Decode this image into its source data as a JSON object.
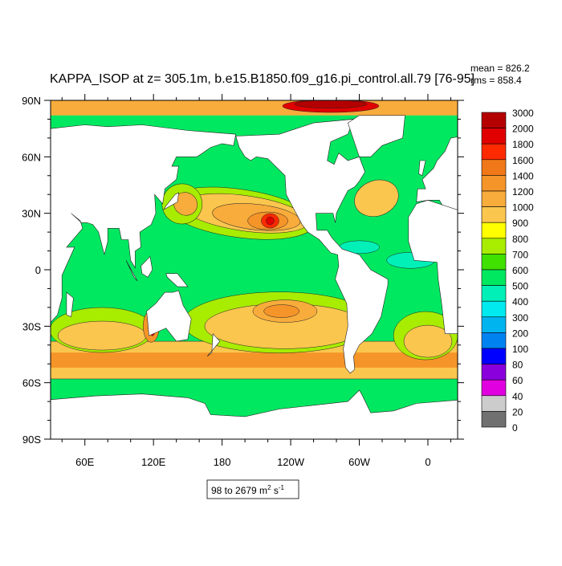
{
  "title": "KAPPA_ISOP at z= 305.1m, b.e15.B1850.f09_g16.pi_control.all.79 [76-95]",
  "stats": {
    "mean": "mean = 826.2",
    "rms": "rms = 858.4"
  },
  "lat_labels": [
    "90N",
    "60N",
    "30N",
    "0",
    "30S",
    "60S",
    "90S"
  ],
  "lon_labels": [
    "60E",
    "120E",
    "180",
    "120W",
    "60W",
    "0"
  ],
  "range": {
    "parts": [
      "98 to 2679 m",
      "2",
      " s",
      "-1"
    ]
  },
  "legend": {
    "labels": [
      "3000",
      "2000",
      "1800",
      "1600",
      "1400",
      "1200",
      "1000",
      "900",
      "800",
      "700",
      "600",
      "500",
      "400",
      "300",
      "200",
      "100",
      "80",
      "60",
      "40",
      "20",
      "0"
    ],
    "colors": [
      "#b40000",
      "#e00000",
      "#ff2a00",
      "#f07818",
      "#f59428",
      "#f8ac3c",
      "#fbc64e",
      "#ffff00",
      "#a8ec00",
      "#40e000",
      "#00e860",
      "#00f0b8",
      "#00eaf0",
      "#00b4f0",
      "#0082f0",
      "#0000ff",
      "#8a00dc",
      "#e000e0",
      "#cccccc",
      "#707070"
    ]
  }
}
